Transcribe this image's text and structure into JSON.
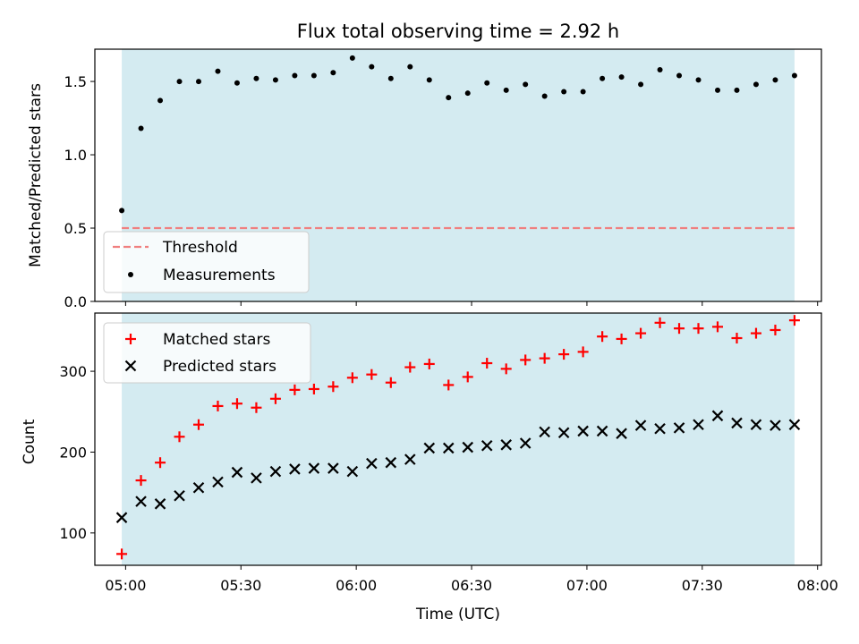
{
  "figure_title": "Flux total observing time = 2.92 h",
  "colors": {
    "shade": "#d4ebf1",
    "threshold": "#f07f7f",
    "matched": "#ff0000",
    "predicted": "#000000",
    "measurement": "#000000"
  },
  "chart_data": [
    {
      "type": "scatter",
      "title": "Flux total observing time = 2.92 h",
      "xlabel": "",
      "ylabel": "Matched/Predicted stars",
      "ylim": [
        0,
        1.72
      ],
      "yticks": [
        0.0,
        0.5,
        1.0,
        1.5
      ],
      "ytick_labels": [
        "0.0",
        "0.5",
        "1.0",
        "1.5"
      ],
      "xlim": [
        "04:52",
        "08:01"
      ],
      "observing_window": [
        "04:59",
        "07:54"
      ],
      "threshold": 0.5,
      "legend": {
        "placement": "lower-left",
        "entries": [
          "Threshold",
          "Measurements"
        ]
      },
      "series": [
        {
          "name": "Measurements",
          "marker": "dot",
          "x": [
            "04:59",
            "05:04",
            "05:09",
            "05:14",
            "05:19",
            "05:24",
            "05:29",
            "05:34",
            "05:39",
            "05:44",
            "05:49",
            "05:54",
            "05:59",
            "06:04",
            "06:09",
            "06:14",
            "06:19",
            "06:24",
            "06:29",
            "06:34",
            "06:39",
            "06:44",
            "06:49",
            "06:54",
            "06:59",
            "07:04",
            "07:09",
            "07:14",
            "07:19",
            "07:24",
            "07:29",
            "07:34",
            "07:39",
            "07:44",
            "07:49",
            "07:54"
          ],
          "y": [
            0.62,
            1.18,
            1.37,
            1.5,
            1.5,
            1.57,
            1.49,
            1.52,
            1.51,
            1.54,
            1.54,
            1.56,
            1.66,
            1.6,
            1.52,
            1.6,
            1.51,
            1.39,
            1.42,
            1.49,
            1.44,
            1.48,
            1.4,
            1.43,
            1.43,
            1.52,
            1.53,
            1.48,
            1.58,
            1.54,
            1.51,
            1.44,
            1.44,
            1.48,
            1.51,
            1.54
          ]
        },
        {
          "name": "Threshold",
          "style": "dashed",
          "x": [
            "04:59",
            "07:54"
          ],
          "y": [
            0.5,
            0.5
          ]
        }
      ]
    },
    {
      "type": "scatter",
      "title": "",
      "xlabel": "Time (UTC)",
      "ylabel": "Count",
      "ylim": [
        60,
        372
      ],
      "yticks": [
        100,
        200,
        300
      ],
      "ytick_labels": [
        "100",
        "200",
        "300"
      ],
      "xlim": [
        "04:52",
        "08:01"
      ],
      "xticks": [
        "05:00",
        "05:30",
        "06:00",
        "06:30",
        "07:00",
        "07:30",
        "08:00"
      ],
      "xtick_labels": [
        "05:00",
        "05:30",
        "06:00",
        "06:30",
        "07:00",
        "07:30",
        "08:00"
      ],
      "observing_window": [
        "04:59",
        "07:54"
      ],
      "legend": {
        "placement": "upper-left",
        "entries": [
          "Matched stars",
          "Predicted stars"
        ]
      },
      "series": [
        {
          "name": "Matched stars",
          "marker": "plus",
          "x": [
            "04:59",
            "05:04",
            "05:09",
            "05:14",
            "05:19",
            "05:24",
            "05:29",
            "05:34",
            "05:39",
            "05:44",
            "05:49",
            "05:54",
            "05:59",
            "06:04",
            "06:09",
            "06:14",
            "06:19",
            "06:24",
            "06:29",
            "06:34",
            "06:39",
            "06:44",
            "06:49",
            "06:54",
            "06:59",
            "07:04",
            "07:09",
            "07:14",
            "07:19",
            "07:24",
            "07:29",
            "07:34",
            "07:39",
            "07:44",
            "07:49",
            "07:54"
          ],
          "y": [
            74,
            165,
            187,
            219,
            234,
            257,
            260,
            255,
            266,
            277,
            278,
            281,
            292,
            296,
            286,
            305,
            309,
            283,
            293,
            310,
            303,
            314,
            316,
            321,
            324,
            343,
            340,
            347,
            360,
            353,
            353,
            355,
            341,
            347,
            351,
            363
          ]
        },
        {
          "name": "Predicted stars",
          "marker": "x",
          "x": [
            "04:59",
            "05:04",
            "05:09",
            "05:14",
            "05:19",
            "05:24",
            "05:29",
            "05:34",
            "05:39",
            "05:44",
            "05:49",
            "05:54",
            "05:59",
            "06:04",
            "06:09",
            "06:14",
            "06:19",
            "06:24",
            "06:29",
            "06:34",
            "06:39",
            "06:44",
            "06:49",
            "06:54",
            "06:59",
            "07:04",
            "07:09",
            "07:14",
            "07:19",
            "07:24",
            "07:29",
            "07:34",
            "07:39",
            "07:44",
            "07:49",
            "07:54"
          ],
          "y": [
            119,
            139,
            136,
            146,
            156,
            163,
            175,
            168,
            176,
            179,
            180,
            180,
            176,
            186,
            187,
            191,
            205,
            205,
            206,
            208,
            209,
            211,
            225,
            224,
            226,
            226,
            223,
            233,
            229,
            230,
            234,
            245,
            236,
            234,
            233,
            234
          ]
        }
      ]
    }
  ]
}
